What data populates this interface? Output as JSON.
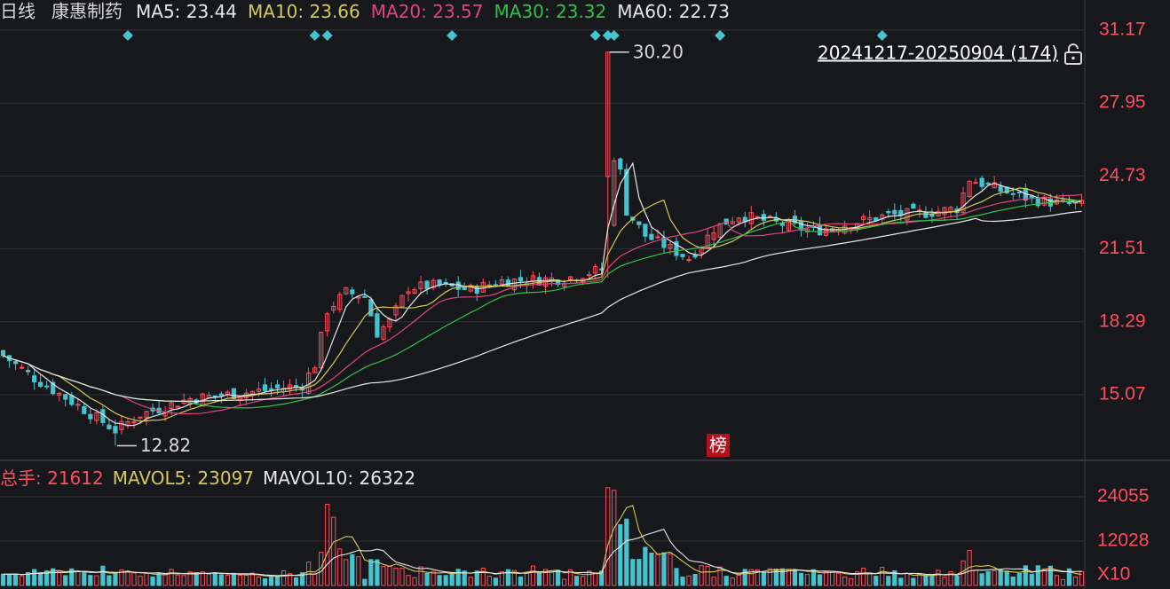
{
  "header": {
    "period": "日线",
    "stock": "康惠制药",
    "ma": [
      {
        "label": "MA5: 23.44",
        "color": "#e8e8e8"
      },
      {
        "label": "MA10: 23.66",
        "color": "#d6c85a"
      },
      {
        "label": "MA20: 23.57",
        "color": "#e0457a"
      },
      {
        "label": "MA30: 23.32",
        "color": "#33c04a"
      },
      {
        "label": "MA60: 22.73",
        "color": "#e8e8e8"
      }
    ]
  },
  "range_text": "20241217-20250904 (174)",
  "badge": "榜",
  "volume_header": [
    {
      "label": "总手: 21612",
      "color": "#ff4d5e"
    },
    {
      "label": "MAVOL5: 23097",
      "color": "#d6c85a"
    },
    {
      "label": "MAVOL10: 26322",
      "color": "#e8e8e8"
    }
  ],
  "volume_unit": "X10",
  "colors": {
    "up": "#ff4d5e",
    "down": "#46c3cf",
    "axis_text": "#ff4d5e",
    "grid": "#2e3238",
    "ma5": "#e8e8e8",
    "ma10": "#d6c85a",
    "ma20": "#e0457a",
    "ma30": "#33c04a",
    "ma60": "#e8e8e8"
  },
  "chart_data": {
    "type": "candlestick",
    "price_axis": {
      "ticks": [
        31.17,
        27.95,
        24.73,
        21.51,
        18.29,
        15.07
      ],
      "range": [
        12.2,
        32.5
      ]
    },
    "volume_axis": {
      "ticks": [
        24055,
        12028
      ],
      "range": [
        0,
        26500
      ]
    },
    "annotations": [
      {
        "text": "30.20",
        "type": "max",
        "value": 30.2
      },
      {
        "text": "12.82",
        "type": "min",
        "value": 12.82
      }
    ],
    "event_markers": [
      20,
      50,
      52,
      72,
      95,
      97,
      98,
      115,
      141
    ],
    "count": 174,
    "start_date": "20241217",
    "end_date": "20250904"
  }
}
